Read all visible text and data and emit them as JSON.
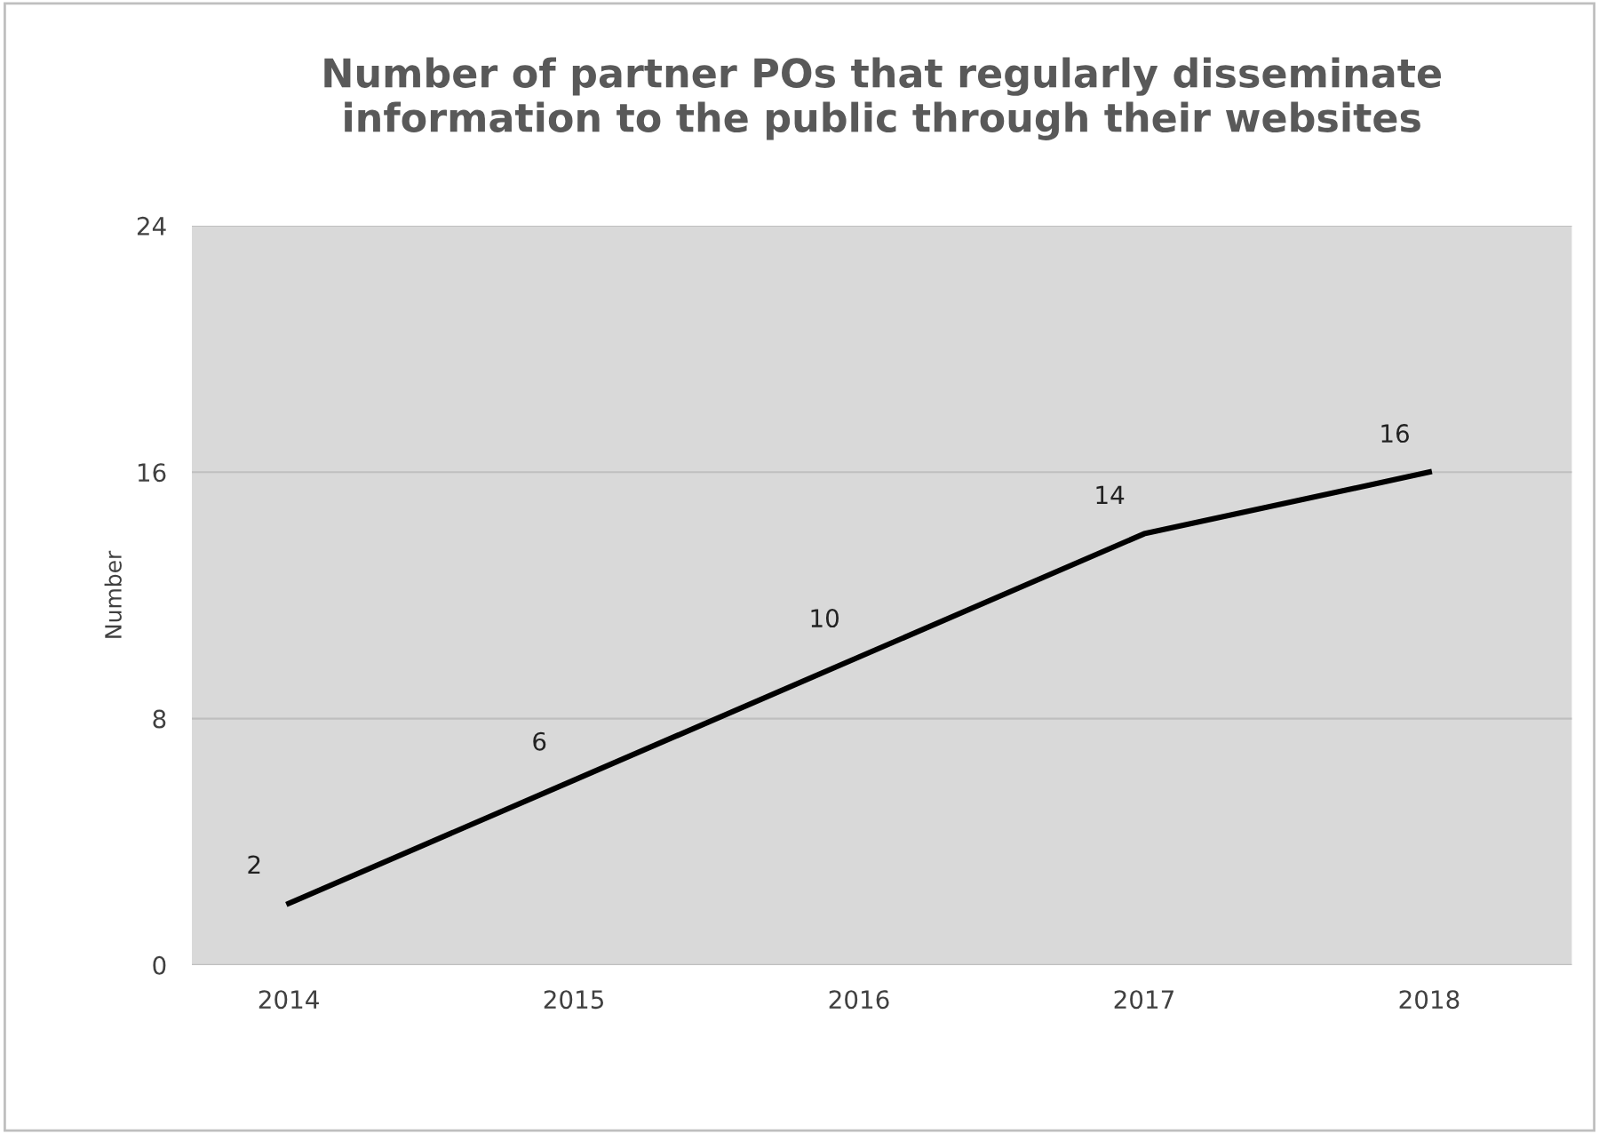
{
  "chart_data": {
    "type": "line",
    "title": "Number of partner POs that regularly disseminate\ninformation to the public through their websites",
    "ylabel": "Number",
    "categories": [
      "2014",
      "2015",
      "2016",
      "2017",
      "2018"
    ],
    "series": [
      {
        "color": "#000000",
        "values": [
          2,
          6,
          10,
          14,
          16
        ]
      }
    ],
    "ylim": [
      0,
      24
    ],
    "yticks": [
      0,
      8,
      16,
      24
    ],
    "grid": "y",
    "data_labels": true,
    "marker": "none",
    "line_style": "solid",
    "legend": false
  }
}
